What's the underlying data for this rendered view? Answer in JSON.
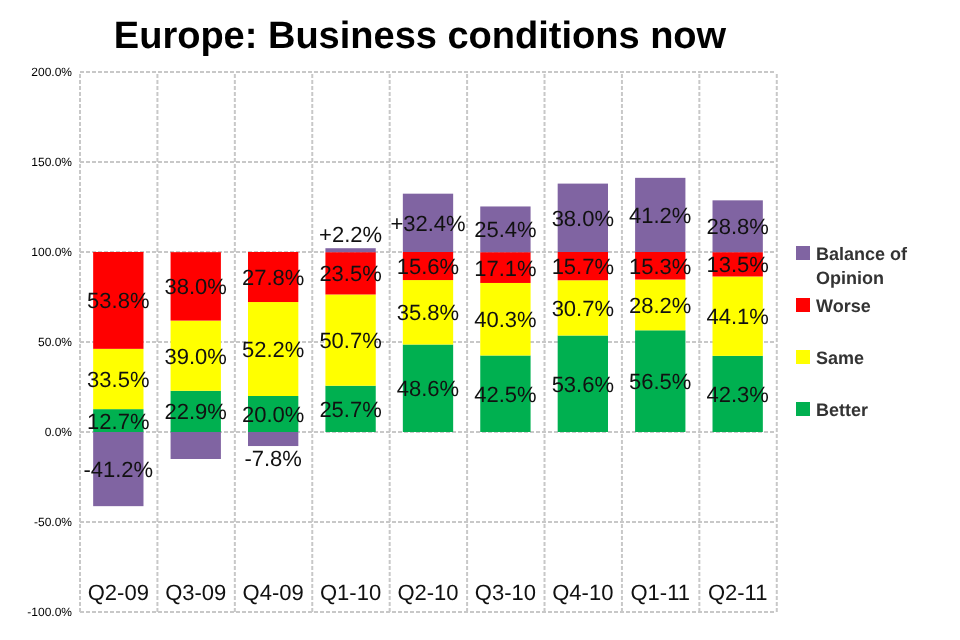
{
  "chart_data": {
    "type": "bar",
    "title": "Europe: Business conditions now",
    "stacked": true,
    "categories": [
      "Q2-09",
      "Q3-09",
      "Q4-09",
      "Q1-10",
      "Q2-10",
      "Q3-10",
      "Q4-10",
      "Q1-11",
      "Q2-11"
    ],
    "series": [
      {
        "name": "Better",
        "color": "#00b050",
        "values": [
          12.7,
          22.9,
          20.0,
          25.7,
          48.6,
          42.5,
          53.6,
          56.5,
          42.3
        ],
        "value_labels": [
          "12.7%",
          "22.9%",
          "20.0%",
          "25.7%",
          "48.6%",
          "42.5%",
          "53.6%",
          "56.5%",
          "42.3%"
        ]
      },
      {
        "name": "Same",
        "color": "#ffff00",
        "values": [
          33.5,
          39.0,
          52.2,
          50.7,
          35.8,
          40.3,
          30.7,
          28.2,
          44.1
        ],
        "value_labels": [
          "33.5%",
          "39.0%",
          "52.2%",
          "50.7%",
          "35.8%",
          "40.3%",
          "30.7%",
          "28.2%",
          "44.1%"
        ]
      },
      {
        "name": "Worse",
        "color": "#ff0000",
        "values": [
          53.8,
          38.0,
          27.8,
          23.5,
          15.6,
          17.1,
          15.7,
          15.3,
          13.5
        ],
        "value_labels": [
          "53.8%",
          "38.0%",
          "27.8%",
          "23.5%",
          "15.6%",
          "17.1%",
          "15.7%",
          "15.3%",
          "13.5%"
        ]
      },
      {
        "name": "Balance of Opinion",
        "color": "#8064a2",
        "values": [
          -41.2,
          -15,
          -7.8,
          2.2,
          32.4,
          25.4,
          38.0,
          41.2,
          28.8
        ],
        "value_labels": [
          "-41.2%",
          null,
          "-7.8%",
          "+2.2%",
          "+32.4%",
          "25.4%",
          "38.0%",
          "41.2%",
          "28.8%"
        ]
      }
    ],
    "ylim": [
      -100,
      200
    ],
    "yticks": [
      {
        "value": -100,
        "label": "-100.0%"
      },
      {
        "value": -50,
        "label": "-50.0%"
      },
      {
        "value": 0,
        "label": "0.0%"
      },
      {
        "value": 50,
        "label": "50.0%"
      },
      {
        "value": 100,
        "label": "100.0%"
      },
      {
        "value": 150,
        "label": "150.0%"
      },
      {
        "value": 200,
        "label": "200.0%"
      }
    ],
    "grid": true,
    "legend": "right"
  }
}
